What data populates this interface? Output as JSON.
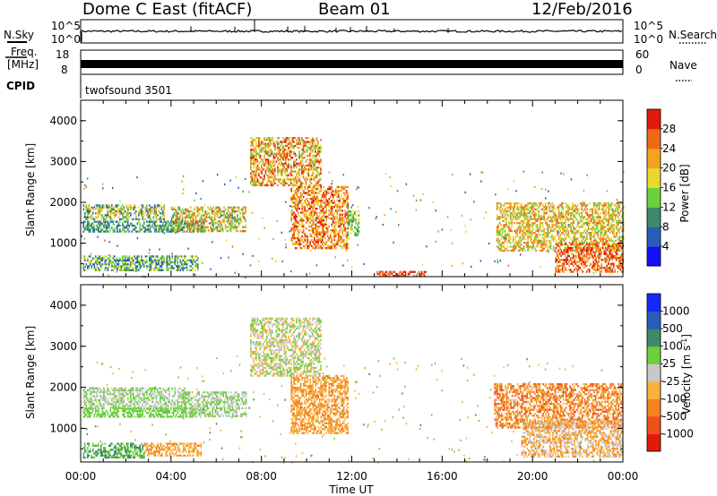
{
  "header": {
    "station": "Dome C East (fitACF)",
    "beam": "Beam 01",
    "date": "12/Feb/2016"
  },
  "top_panels": {
    "nsky_label": "N.Sky",
    "nsky_ticks": [
      "10^5",
      "10^0"
    ],
    "nsearch_label": "N.Search",
    "nsearch_ticks": [
      "10^5",
      "10^0"
    ],
    "freq_label_1": "Freq.",
    "freq_label_2": "[MHz]",
    "freq_ticks": [
      "18",
      "8"
    ],
    "nave_label": "Nave",
    "nave_ticks": [
      "60",
      "0"
    ],
    "cpid_label": "CPID",
    "cpid_value": "twofsound 3501"
  },
  "chart_data": [
    {
      "type": "heatmap",
      "panel": "power",
      "ylabel": "Slant Range [km]",
      "yticks": [
        "1000",
        "2000",
        "3000",
        "4000"
      ],
      "ylim": [
        180,
        4500
      ],
      "xlim": [
        "00:00",
        "24:00"
      ],
      "colorbar_label": "Power [dB]",
      "colorbar_ticks": [
        "4",
        "8",
        "12",
        "16",
        "20",
        "24",
        "28"
      ],
      "colorbar_colors": [
        "#1010ff",
        "#2a5db8",
        "#3c8a6a",
        "#6ccf3c",
        "#e7d930",
        "#f3a321",
        "#f06a16",
        "#e21a0c"
      ],
      "regions": [
        {
          "t0": 0.1,
          "t1": 3.7,
          "r0": 1600,
          "r1": 1950,
          "levels": [
            4,
            8,
            12,
            16,
            20
          ]
        },
        {
          "t0": 0.1,
          "t1": 5.5,
          "r0": 1300,
          "r1": 1550,
          "levels": [
            4,
            8,
            12
          ]
        },
        {
          "t0": 0.1,
          "t1": 5.2,
          "r0": 350,
          "r1": 700,
          "levels": [
            4,
            8,
            12,
            16
          ]
        },
        {
          "t0": 4.0,
          "t1": 7.3,
          "r0": 1300,
          "r1": 1900,
          "levels": [
            8,
            12,
            16,
            20,
            24
          ]
        },
        {
          "t0": 7.5,
          "t1": 10.6,
          "r0": 2400,
          "r1": 3600,
          "levels": [
            12,
            16,
            20,
            24,
            28
          ]
        },
        {
          "t0": 9.3,
          "t1": 11.8,
          "r0": 900,
          "r1": 2400,
          "levels": [
            16,
            20,
            24,
            28
          ]
        },
        {
          "t0": 11.8,
          "t1": 12.3,
          "r0": 1200,
          "r1": 1800,
          "levels": [
            8,
            12,
            16
          ]
        },
        {
          "t0": 13.1,
          "t1": 15.3,
          "r0": 200,
          "r1": 320,
          "levels": [
            24,
            28
          ]
        },
        {
          "t0": 18.4,
          "t1": 24.0,
          "r0": 800,
          "r1": 2000,
          "levels": [
            12,
            16,
            20,
            24
          ]
        },
        {
          "t0": 21.0,
          "t1": 24.0,
          "r0": 300,
          "r1": 1000,
          "levels": [
            20,
            24,
            28
          ]
        }
      ]
    },
    {
      "type": "heatmap",
      "panel": "velocity",
      "ylabel": "Slant Range [km]",
      "yticks": [
        "1000",
        "2000",
        "3000",
        "4000"
      ],
      "ylim": [
        180,
        4500
      ],
      "xlabel": "Time UT",
      "xticks": [
        "00:00",
        "04:00",
        "08:00",
        "12:00",
        "16:00",
        "20:00",
        "00:00"
      ],
      "xlim": [
        "00:00",
        "24:00"
      ],
      "colorbar_label": "Velocity [m s^-1]",
      "colorbar_ticks": [
        "1000",
        "500",
        "100",
        "25",
        "-25",
        "-100",
        "-500",
        "-1000"
      ],
      "colorbar_colors": [
        "#1428ff",
        "#2a5db8",
        "#3c8a6a",
        "#6ccf3c",
        "#c8c8c8",
        "#f7b23a",
        "#f5831e",
        "#f0501a",
        "#e21a0c"
      ],
      "regions": [
        {
          "t0": 0.1,
          "t1": 4.6,
          "r0": 1500,
          "r1": 2000,
          "levels": [
            25,
            -25
          ]
        },
        {
          "t0": 0.1,
          "t1": 5.5,
          "r0": 1300,
          "r1": 1500,
          "levels": [
            25
          ]
        },
        {
          "t0": 0.1,
          "t1": 2.8,
          "r0": 300,
          "r1": 650,
          "levels": [
            100,
            25
          ]
        },
        {
          "t0": 2.8,
          "t1": 5.3,
          "r0": 350,
          "r1": 650,
          "levels": [
            -100,
            -500
          ]
        },
        {
          "t0": 4.5,
          "t1": 7.3,
          "r0": 1300,
          "r1": 1900,
          "levels": [
            25,
            -25
          ]
        },
        {
          "t0": 7.5,
          "t1": 10.6,
          "r0": 2300,
          "r1": 3700,
          "levels": [
            25,
            -25,
            -100
          ]
        },
        {
          "t0": 9.3,
          "t1": 11.8,
          "r0": 900,
          "r1": 2300,
          "levels": [
            -100,
            -500
          ]
        },
        {
          "t0": 18.3,
          "t1": 24.0,
          "r0": 1000,
          "r1": 2100,
          "levels": [
            -100,
            -500,
            -1000
          ]
        },
        {
          "t0": 19.5,
          "t1": 24.0,
          "r0": 300,
          "r1": 1200,
          "levels": [
            -100,
            -500,
            -25
          ]
        }
      ]
    }
  ]
}
